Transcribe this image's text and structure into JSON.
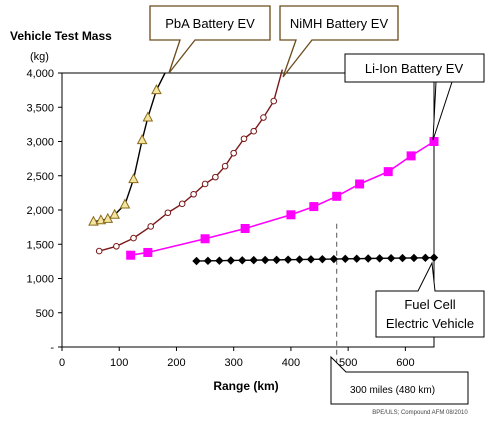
{
  "chart_data": {
    "type": "line",
    "title": "Vehicle Test Mass",
    "ylabel_unit": "(kg)",
    "xlabel": "Range (km)",
    "xlim": [
      0,
      650
    ],
    "ylim": [
      0,
      4000
    ],
    "x_ticks": [
      "0",
      "100",
      "200",
      "300",
      "400",
      "500",
      "600"
    ],
    "y_ticks": [
      "-",
      "500",
      "1,000",
      "1,500",
      "2,000",
      "2,500",
      "3,000",
      "3,500",
      "4,000"
    ],
    "grid": false,
    "series": [
      {
        "name": "PbA Battery EV",
        "color": "#000000",
        "marker": "triangle",
        "marker_fill": "#f2e6a0",
        "marker_stroke": "#8b6a1a",
        "x": [
          55,
          68,
          80,
          92,
          110,
          125,
          140,
          150,
          165
        ],
        "y": [
          1830,
          1850,
          1870,
          1930,
          2080,
          2450,
          3020,
          3350,
          3750
        ],
        "curve_end": [
          180,
          4000
        ]
      },
      {
        "name": "NiMH Battery EV",
        "color": "#7a1818",
        "marker": "circle",
        "marker_fill": "#ffffff",
        "marker_stroke": "#7a1818",
        "x": [
          65,
          95,
          125,
          155,
          185,
          210,
          230,
          250,
          268,
          285,
          300,
          318,
          335,
          352,
          370
        ],
        "y": [
          1400,
          1470,
          1590,
          1760,
          1960,
          2090,
          2230,
          2380,
          2480,
          2640,
          2830,
          3040,
          3150,
          3350,
          3590
        ],
        "curve_end": [
          385,
          4050
        ]
      },
      {
        "name": "Li-Ion Battery EV",
        "color": "#ff00ff",
        "marker": "square",
        "marker_fill": "#ff00ff",
        "marker_stroke": "#ff00ff",
        "x": [
          120,
          150,
          250,
          320,
          400,
          440,
          480,
          520,
          570,
          610,
          650
        ],
        "y": [
          1340,
          1380,
          1580,
          1730,
          1930,
          2050,
          2200,
          2380,
          2560,
          2790,
          3000
        ]
      },
      {
        "name": "Fuel Cell Electric Vehicle",
        "color": "#000000",
        "marker": "diamond",
        "marker_fill": "#000000",
        "marker_stroke": "#000000",
        "x": [
          235,
          255,
          275,
          295,
          315,
          335,
          355,
          375,
          395,
          415,
          435,
          455,
          475,
          495,
          515,
          535,
          555,
          575,
          595,
          615,
          635,
          650
        ],
        "y": [
          1255,
          1258,
          1260,
          1263,
          1265,
          1268,
          1270,
          1272,
          1275,
          1277,
          1280,
          1282,
          1284,
          1287,
          1289,
          1292,
          1294,
          1296,
          1298,
          1300,
          1302,
          1305
        ]
      }
    ],
    "callouts": [
      {
        "series": "PbA Battery EV",
        "lines": [
          "PbA Battery EV"
        ]
      },
      {
        "series": "NiMH Battery EV",
        "lines": [
          "NiMH Battery EV"
        ]
      },
      {
        "series": "Li-Ion Battery EV",
        "lines": [
          "Li-Ion Battery EV"
        ]
      },
      {
        "series": "Fuel Cell Electric Vehicle",
        "lines": [
          "Fuel Cell",
          "Electric Vehicle"
        ]
      }
    ],
    "reference_line": {
      "x": 480,
      "label": "300 miles (480 km)"
    },
    "credit": "BPE/ULS; Compound AFM 08/2010"
  }
}
